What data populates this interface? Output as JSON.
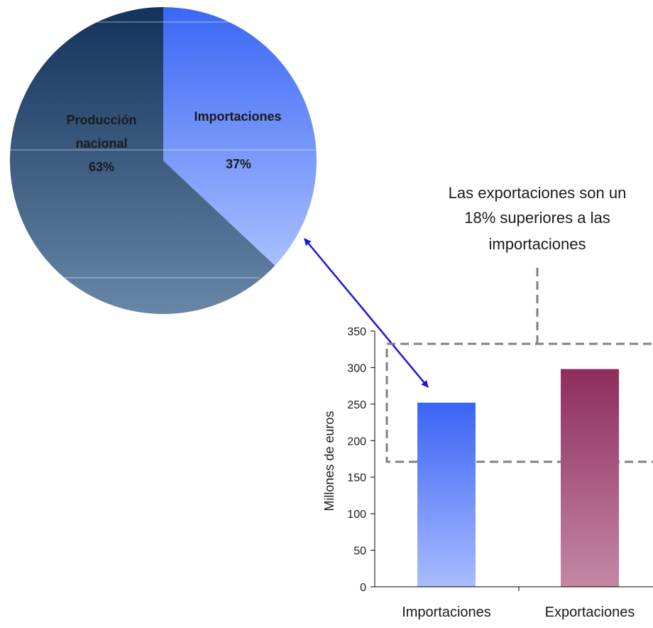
{
  "chart_data": [
    {
      "type": "pie",
      "slices": [
        {
          "label_line1": "Producción",
          "label_line2": "nacional",
          "value": 63,
          "value_label": "63%",
          "color_top": "#13325c",
          "color_bottom": "#6886a6"
        },
        {
          "label_line1": "Importaciones",
          "label_line2": "",
          "value": 37,
          "value_label": "37%",
          "color_top": "#3a67f4",
          "color_bottom": "#a9bfff"
        }
      ]
    },
    {
      "type": "bar",
      "categories": [
        "Importaciones",
        "Exportaciones"
      ],
      "values": [
        252,
        298
      ],
      "ylabel": "Millones de euros",
      "ylim": [
        0,
        350
      ],
      "yticks": [
        0,
        50,
        100,
        150,
        200,
        250,
        300,
        350
      ],
      "colors": [
        {
          "top": "#3a64f5",
          "bottom": "#a9bcff"
        },
        {
          "top": "#8e2d5d",
          "bottom": "#c487a5"
        }
      ]
    }
  ],
  "annotation": {
    "lines": [
      "Las exportaciones son un",
      "18% superiores a las",
      "importaciones"
    ]
  },
  "colors": {
    "arrow": "#1818d8",
    "dashed_box": "#808080"
  }
}
